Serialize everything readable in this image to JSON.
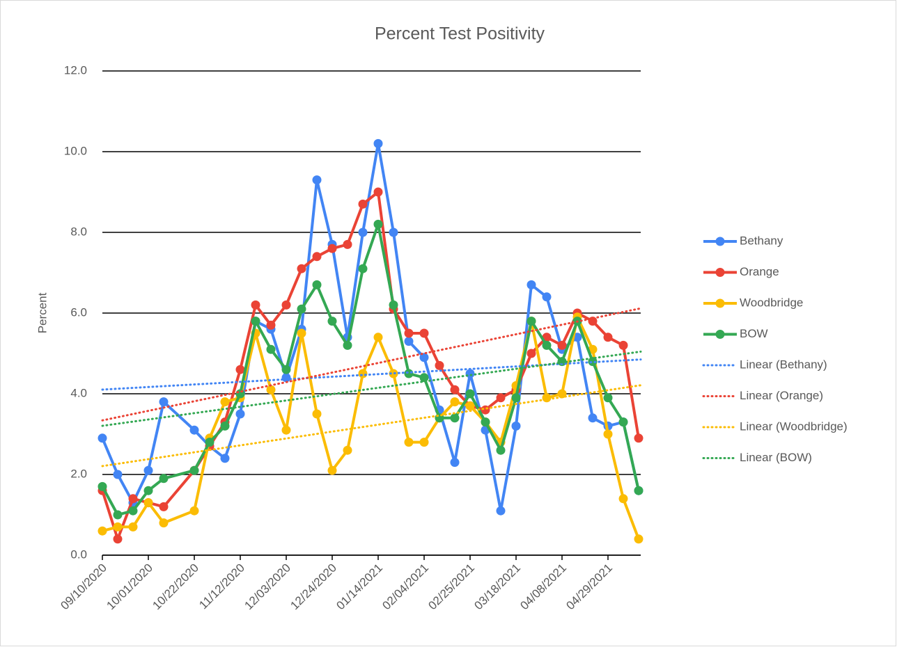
{
  "chart_data": {
    "type": "line",
    "title": "Percent Test Positivity",
    "y_label": "Percent",
    "x": [
      "09/10/2020",
      "09/17/2020",
      "09/24/2020",
      "10/01/2020",
      "10/08/2020",
      "10/22/2020",
      "10/29/2020",
      "11/05/2020",
      "11/12/2020",
      "11/19/2020",
      "11/26/2020",
      "12/03/2020",
      "12/10/2020",
      "12/17/2020",
      "12/24/2020",
      "12/31/2020",
      "01/07/2021",
      "01/14/2021",
      "01/21/2021",
      "01/28/2021",
      "02/04/2021",
      "02/11/2021",
      "02/18/2021",
      "02/25/2021",
      "03/04/2021",
      "03/11/2021",
      "03/18/2021",
      "03/25/2021",
      "04/01/2021",
      "04/08/2021",
      "04/15/2021",
      "04/22/2021",
      "04/29/2021",
      "05/06/2021",
      "05/13/2021"
    ],
    "series": [
      {
        "name": "Bethany",
        "color": "#4285f4",
        "trendline": {
          "type": "linear",
          "name": "Linear (Bethany)"
        },
        "values": [
          2.9,
          2.0,
          1.3,
          2.1,
          3.8,
          3.1,
          2.7,
          2.4,
          3.5,
          5.8,
          5.6,
          4.4,
          5.6,
          9.3,
          7.7,
          5.4,
          8.0,
          10.2,
          8.0,
          5.3,
          4.9,
          3.6,
          2.3,
          4.5,
          3.1,
          1.1,
          3.2,
          6.7,
          6.4,
          5.1,
          5.4,
          3.4,
          3.2,
          3.3,
          1.6
        ]
      },
      {
        "name": "Orange",
        "color": "#ea4335",
        "trendline": {
          "type": "linear",
          "name": "Linear (Orange)"
        },
        "values": [
          1.6,
          0.4,
          1.4,
          1.3,
          1.2,
          2.1,
          2.7,
          3.3,
          4.6,
          6.2,
          5.7,
          6.2,
          7.1,
          7.4,
          7.6,
          7.7,
          8.7,
          9.0,
          6.1,
          5.5,
          5.5,
          4.7,
          4.1,
          3.7,
          3.6,
          3.9,
          4.1,
          5.0,
          5.4,
          5.2,
          6.0,
          5.8,
          5.4,
          5.2,
          2.9
        ]
      },
      {
        "name": "Woodbridge",
        "color": "#fbbc04",
        "trendline": {
          "type": "linear",
          "name": "Linear (Woodbridge)"
        },
        "values": [
          0.6,
          0.7,
          0.7,
          1.3,
          0.8,
          1.1,
          2.9,
          3.8,
          3.9,
          5.5,
          4.1,
          3.1,
          5.5,
          3.5,
          2.1,
          2.6,
          4.5,
          5.4,
          4.5,
          2.8,
          2.8,
          3.4,
          3.8,
          3.7,
          3.3,
          2.8,
          4.2,
          5.8,
          3.9,
          4.0,
          5.9,
          5.1,
          3.0,
          1.4,
          0.4
        ]
      },
      {
        "name": "BOW",
        "color": "#34a853",
        "trendline": {
          "type": "linear",
          "name": "Linear (BOW)"
        },
        "values": [
          1.7,
          1.0,
          1.1,
          1.6,
          1.9,
          2.1,
          2.8,
          3.2,
          4.0,
          5.8,
          5.1,
          4.6,
          6.1,
          6.7,
          5.8,
          5.2,
          7.1,
          8.2,
          6.2,
          4.5,
          4.4,
          3.4,
          3.4,
          4.0,
          3.3,
          2.6,
          3.9,
          5.8,
          5.2,
          4.8,
          5.8,
          4.8,
          3.9,
          3.3,
          1.6
        ]
      }
    ],
    "xlim": [
      "09/10/2020",
      "05/13/2021"
    ],
    "xticks": [
      "09/10/2020",
      "10/01/2020",
      "10/22/2020",
      "11/12/2020",
      "12/03/2020",
      "12/24/2020",
      "01/14/2021",
      "02/04/2021",
      "02/25/2021",
      "03/18/2021",
      "04/08/2021",
      "04/29/2021"
    ],
    "ylim": [
      0,
      12
    ],
    "yticks": [
      {
        "value": 0,
        "label": "0.0"
      },
      {
        "value": 2,
        "label": "2.0"
      },
      {
        "value": 4,
        "label": "4.0"
      },
      {
        "value": 6,
        "label": "6.0"
      },
      {
        "value": 8,
        "label": "8.0"
      },
      {
        "value": 10,
        "label": "10.0"
      },
      {
        "value": 12,
        "label": "12.0"
      }
    ],
    "grid": true,
    "legend": "right"
  }
}
